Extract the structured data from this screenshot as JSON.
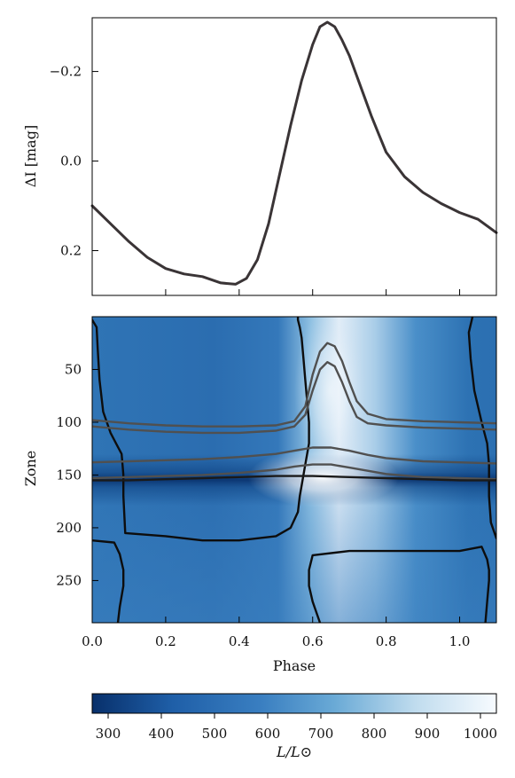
{
  "chart_data": [
    {
      "type": "line",
      "panel": "light-curve",
      "ylabel": "ΔI [mag]",
      "xlim": [
        0.0,
        1.1
      ],
      "ylim": [
        0.3,
        -0.32
      ],
      "y_inverted": true,
      "yticks": [
        -0.2,
        0.0,
        0.2
      ],
      "ytick_labels": [
        "−0.2",
        "0.0",
        "0.2"
      ],
      "xticks": [
        0.0,
        0.2,
        0.4,
        0.6,
        0.8,
        1.0
      ],
      "grid": false,
      "series": [
        {
          "color": "#3a3436",
          "x": [
            0.0,
            0.05,
            0.1,
            0.15,
            0.2,
            0.25,
            0.3,
            0.35,
            0.39,
            0.42,
            0.45,
            0.48,
            0.51,
            0.54,
            0.57,
            0.6,
            0.62,
            0.64,
            0.66,
            0.68,
            0.7,
            0.72,
            0.74,
            0.76,
            0.78,
            0.8,
            0.85,
            0.9,
            0.95,
            1.0,
            1.05,
            1.1
          ],
          "y": [
            0.1,
            0.14,
            0.18,
            0.215,
            0.24,
            0.252,
            0.258,
            0.272,
            0.275,
            0.262,
            0.22,
            0.14,
            0.03,
            -0.08,
            -0.18,
            -0.26,
            -0.3,
            -0.31,
            -0.3,
            -0.27,
            -0.235,
            -0.19,
            -0.145,
            -0.1,
            -0.06,
            -0.02,
            0.035,
            0.07,
            0.095,
            0.115,
            0.13,
            0.16
          ]
        }
      ]
    },
    {
      "type": "heatmap",
      "panel": "zone-luminosity",
      "xlabel": "Phase",
      "ylabel": "Zone",
      "xlim": [
        0.0,
        1.1
      ],
      "ylim": [
        290,
        0
      ],
      "y_inverted": true,
      "xticks": [
        0.0,
        0.2,
        0.4,
        0.6,
        0.8,
        1.0
      ],
      "xtick_labels": [
        "0.0",
        "0.2",
        "0.4",
        "0.6",
        "0.8",
        "1.0"
      ],
      "yticks": [
        50,
        100,
        150,
        200,
        250
      ],
      "ytick_labels": [
        "50",
        "100",
        "150",
        "200",
        "250"
      ],
      "colormap": "Blues_r",
      "colors": {
        "low": "#08306b",
        "mid": "#4a90c8",
        "high": "#f7fbff"
      },
      "colorbar": {
        "label": "L/L⊙",
        "range": [
          270,
          1030
        ],
        "ticks": [
          300,
          400,
          500,
          600,
          700,
          800,
          900,
          1000
        ],
        "tick_labels": [
          "300",
          "400",
          "500",
          "600",
          "700",
          "800",
          "900",
          "1000"
        ],
        "orientation": "horizontal"
      },
      "contours": [
        {
          "color": "#0d0d0d",
          "x": [
            0.0,
            0.012,
            0.015,
            0.02,
            0.03,
            0.05,
            0.065,
            0.08,
            0.085,
            0.085,
            0.09,
            0.2,
            0.3,
            0.4,
            0.5,
            0.54,
            0.56,
            0.565,
            0.57,
            0.58,
            0.59,
            0.59,
            0.585,
            0.58,
            0.575,
            0.57,
            0.565,
            0.56,
            0.56
          ],
          "y": [
            3,
            10,
            30,
            60,
            90,
            110,
            120,
            130,
            150,
            170,
            205,
            208,
            212,
            212,
            208,
            200,
            185,
            170,
            160,
            140,
            120,
            100,
            80,
            60,
            40,
            20,
            10,
            3,
            0
          ]
        },
        {
          "color": "#0d0d0d",
          "x": [
            1.035,
            1.025,
            1.03,
            1.04,
            1.06,
            1.075,
            1.08,
            1.08,
            1.085,
            1.1
          ],
          "y": [
            0,
            15,
            40,
            70,
            100,
            120,
            140,
            170,
            195,
            210
          ]
        },
        {
          "color": "#0d0d0d",
          "x": [
            0.0,
            0.06,
            0.075,
            0.085,
            0.085,
            0.075,
            0.07
          ],
          "y": [
            212,
            214,
            225,
            240,
            255,
            275,
            290
          ]
        },
        {
          "color": "#0d0d0d",
          "x": [
            0.62,
            0.6,
            0.59,
            0.59,
            0.6,
            0.7,
            0.8,
            0.9,
            1.0,
            1.06,
            1.075,
            1.08,
            1.08,
            1.075,
            1.07
          ],
          "y": [
            290,
            270,
            255,
            240,
            226,
            222,
            222,
            222,
            222,
            218,
            230,
            240,
            250,
            270,
            290
          ]
        },
        {
          "color": "#505050",
          "x": [
            0.0,
            0.1,
            0.2,
            0.3,
            0.4,
            0.5,
            0.55,
            0.58,
            0.6,
            0.62,
            0.64,
            0.66,
            0.68,
            0.7,
            0.72,
            0.75,
            0.8,
            0.9,
            1.0,
            1.1
          ],
          "y": [
            98,
            101,
            103,
            104,
            104,
            103,
            99,
            85,
            55,
            33,
            25,
            28,
            42,
            62,
            80,
            92,
            97,
            99,
            100,
            101
          ]
        },
        {
          "color": "#505050",
          "x": [
            0.0,
            0.1,
            0.2,
            0.3,
            0.4,
            0.5,
            0.55,
            0.58,
            0.6,
            0.62,
            0.64,
            0.66,
            0.68,
            0.7,
            0.72,
            0.75,
            0.8,
            0.9,
            1.0,
            1.1
          ],
          "y": [
            104,
            107,
            109,
            110,
            110,
            108,
            104,
            93,
            70,
            50,
            43,
            47,
            62,
            80,
            95,
            101,
            103,
            105,
            106,
            107
          ]
        },
        {
          "color": "#505050",
          "x": [
            0.0,
            0.1,
            0.2,
            0.3,
            0.4,
            0.5,
            0.55,
            0.6,
            0.65,
            0.7,
            0.75,
            0.8,
            0.9,
            1.0,
            1.1
          ],
          "y": [
            138,
            137,
            136,
            135,
            133,
            130,
            127,
            124,
            124,
            127,
            131,
            134,
            137,
            138,
            139
          ]
        },
        {
          "color": "#505050",
          "x": [
            0.0,
            0.1,
            0.2,
            0.3,
            0.4,
            0.5,
            0.55,
            0.6,
            0.65,
            0.7,
            0.75,
            0.8,
            0.9,
            1.0,
            1.1
          ],
          "y": [
            153,
            152,
            151,
            150,
            148,
            145,
            142,
            140,
            140,
            143,
            146,
            149,
            152,
            153,
            154
          ]
        },
        {
          "color": "#1a1a1a",
          "x": [
            0.0,
            0.1,
            0.2,
            0.3,
            0.4,
            0.5,
            0.6,
            0.7,
            0.8,
            0.9,
            1.0,
            1.1
          ],
          "y": [
            155,
            155,
            154,
            153,
            152,
            151,
            151,
            152,
            153,
            154,
            155,
            155
          ]
        }
      ]
    }
  ]
}
